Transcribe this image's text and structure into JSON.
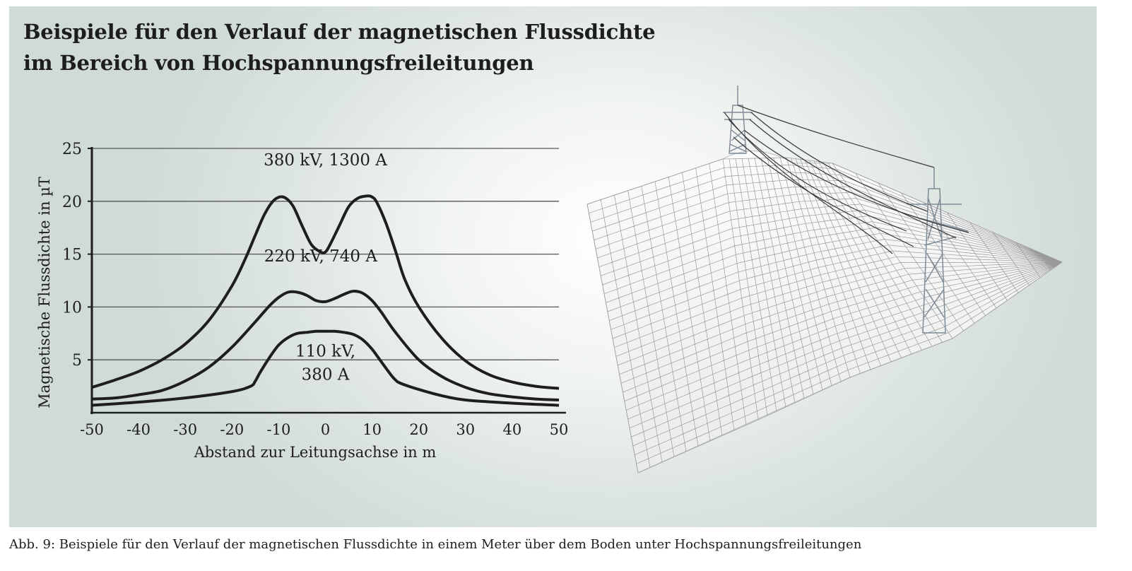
{
  "header": {
    "title_line1": "Beispiele für den Verlauf der magnetischen Flussdichte",
    "title_line2": "im Bereich von Hochspannungsfreileitungen"
  },
  "caption": "Abb. 9: Beispiele für den Verlauf der magnetischen Flussdichte in einem Meter über dem Boden unter Hochspannungsfreileitungen",
  "colors": {
    "panel": "#dde5e1",
    "line": "#1e1e1e",
    "grid": "#555555",
    "mesh": "#9a9a9a"
  },
  "chart_data": {
    "type": "line",
    "xlabel": "Abstand zur Leitungsachse in m",
    "ylabel": "Magnetische Flussdichte in µT",
    "xlim": [
      -50,
      50
    ],
    "ylim": [
      0,
      25
    ],
    "xticks": [
      -50,
      -40,
      -30,
      -20,
      -10,
      0,
      10,
      20,
      30,
      40,
      50
    ],
    "yticks": [
      5,
      10,
      15,
      20,
      25
    ],
    "grid": "horizontal",
    "legend": "none",
    "series": [
      {
        "name": "380 kV, 1300 A",
        "label_lines": [
          "380 kV, 1300 A"
        ],
        "x": [
          -50,
          -45,
          -40,
          -35,
          -30,
          -25,
          -20,
          -17,
          -15,
          -13,
          -11,
          -9,
          -7,
          -5,
          -3,
          -1,
          0,
          1,
          3,
          5,
          7,
          9,
          10,
          11,
          13,
          15,
          17,
          20,
          25,
          30,
          35,
          40,
          45,
          50
        ],
        "y": [
          2.4,
          3.1,
          3.9,
          5.0,
          6.5,
          8.7,
          12.0,
          14.7,
          16.8,
          18.8,
          20.1,
          20.4,
          19.6,
          17.7,
          15.9,
          15.2,
          15.2,
          15.9,
          17.7,
          19.5,
          20.3,
          20.5,
          20.4,
          19.9,
          17.9,
          15.3,
          12.6,
          10.0,
          7.0,
          4.9,
          3.6,
          2.9,
          2.5,
          2.3
        ]
      },
      {
        "name": "220 kV, 740 A",
        "label_lines": [
          "220 kV, 740 A"
        ],
        "x": [
          -50,
          -45,
          -40,
          -35,
          -30,
          -25,
          -20,
          -15,
          -12,
          -10,
          -8,
          -6,
          -4,
          -2,
          0,
          2,
          4,
          6,
          8,
          10,
          12,
          15,
          20,
          25,
          30,
          35,
          40,
          45,
          50
        ],
        "y": [
          1.3,
          1.4,
          1.7,
          2.1,
          3.0,
          4.3,
          6.2,
          8.6,
          10.1,
          10.9,
          11.4,
          11.4,
          11.1,
          10.6,
          10.5,
          10.8,
          11.2,
          11.5,
          11.3,
          10.6,
          9.5,
          7.6,
          5.0,
          3.4,
          2.4,
          1.8,
          1.5,
          1.3,
          1.2
        ]
      },
      {
        "name": "110 kV, 380 A",
        "label_lines": [
          "110 kV,",
          "380 A"
        ],
        "x": [
          -50,
          -40,
          -30,
          -20,
          -16,
          -15,
          -14,
          -12,
          -10,
          -8,
          -6,
          -4,
          -2,
          0,
          2,
          4,
          6,
          8,
          10,
          12,
          14,
          15,
          16,
          20,
          25,
          30,
          40,
          50
        ],
        "y": [
          0.7,
          1.0,
          1.4,
          2.0,
          2.5,
          3.0,
          3.8,
          5.2,
          6.4,
          7.1,
          7.5,
          7.6,
          7.7,
          7.7,
          7.7,
          7.6,
          7.4,
          6.9,
          6.0,
          4.8,
          3.6,
          3.1,
          2.8,
          2.2,
          1.6,
          1.2,
          0.9,
          0.7
        ]
      }
    ]
  }
}
